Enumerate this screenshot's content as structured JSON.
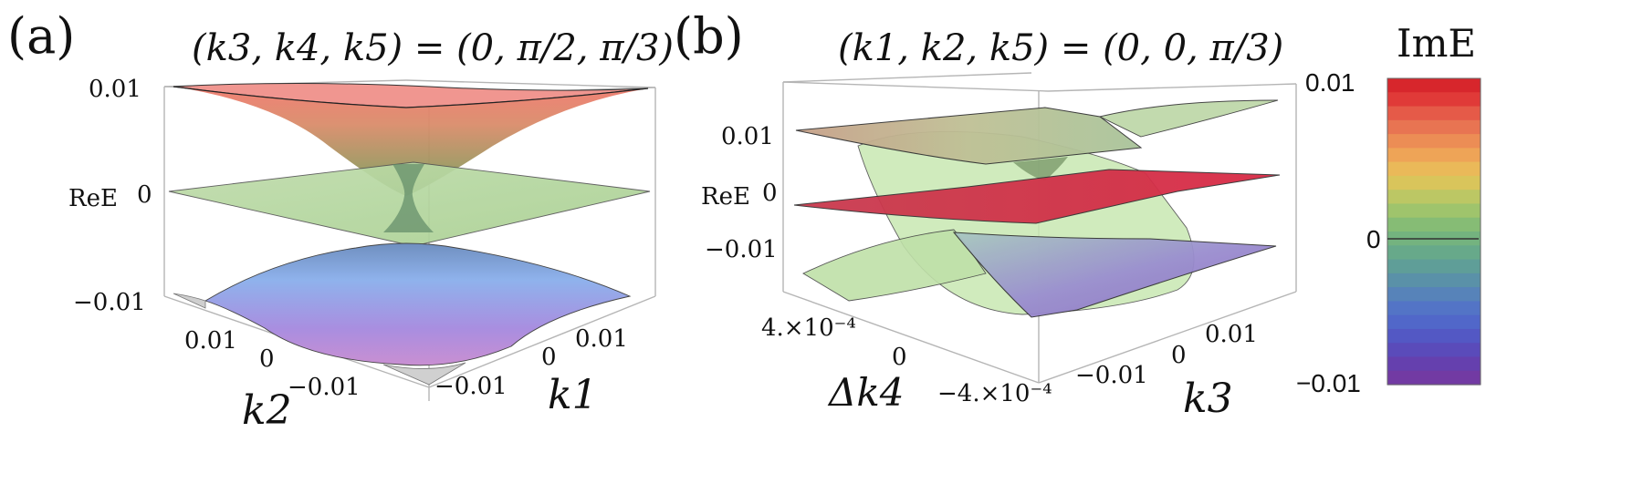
{
  "panel_a": {
    "label": "(a)",
    "title": "(k3, k4, k5) = (0, π/2, π/3)",
    "z_axis_label": "ReE",
    "z_ticks": [
      "0.01",
      "0",
      "−0.01"
    ],
    "k2_ticks": [
      "0.01",
      "0",
      "−0.01"
    ],
    "k1_ticks": [
      "−0.01",
      "0",
      "0.01"
    ],
    "k2_label": "k2",
    "k1_label": "k1"
  },
  "panel_b": {
    "label": "(b)",
    "title": "(k1, k2, k5) = (0, 0, π/3)",
    "z_axis_label": "ReE",
    "z_ticks": [
      "0.01",
      "0",
      "−0.01"
    ],
    "dk4_ticks": [
      "4.×10⁻⁴",
      "0",
      "−4.×10⁻⁴"
    ],
    "k3_ticks": [
      "−0.01",
      "0",
      "0.01"
    ],
    "dk4_label": "Δk4",
    "k3_label": "k3"
  },
  "colorbar": {
    "title": "ImE",
    "ticks": [
      "0.01",
      "0",
      "−0.01"
    ],
    "colors": [
      "#d7262c",
      "#e03a38",
      "#e55a48",
      "#e87452",
      "#ec8d55",
      "#eea457",
      "#eab959",
      "#d9c55b",
      "#bcc764",
      "#9fc46c",
      "#86bc75",
      "#74b37f",
      "#67a98a",
      "#5f9e98",
      "#5a91a8",
      "#5783b9",
      "#5374c6",
      "#5167c9",
      "#5358c4",
      "#5a4bba",
      "#6540ae",
      "#723aa3"
    ]
  }
}
